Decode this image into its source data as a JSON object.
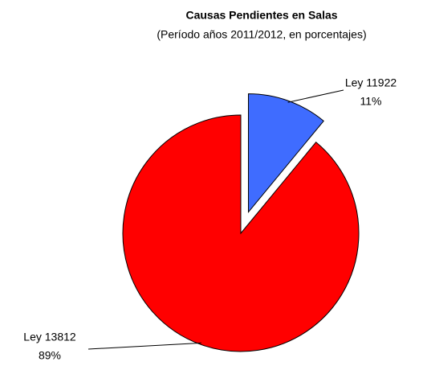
{
  "chart_data": {
    "type": "pie",
    "title": "Causas Pendientes en Salas",
    "subtitle": "(Período años 2011/2012, en porcentajes)",
    "categories": [
      "Ley 11922",
      "Ley 13812"
    ],
    "values": [
      11,
      89
    ],
    "value_labels": [
      "11%",
      "89%"
    ],
    "colors": [
      "#3f6cff",
      "#ff0000"
    ],
    "exploded": [
      true,
      false
    ]
  }
}
